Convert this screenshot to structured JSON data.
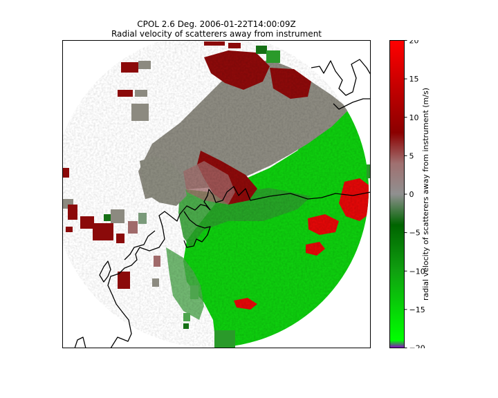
{
  "figure": {
    "title_line1": "CPOL 2.6 Deg. 2006-01-22T14:00:09Z",
    "title_line2": "Radial velocity of scatterers away from instrument"
  },
  "colorbar": {
    "label": "radial velocity of scatterers away from instrument (m/s)",
    "min": -20,
    "max": 20,
    "ticks": [
      "-20",
      "-15",
      "-10",
      "-5",
      "0",
      "5",
      "10",
      "15",
      "20"
    ],
    "stops": [
      {
        "value": -20,
        "color": "#8a00c8"
      },
      {
        "value": -19,
        "color": "#00ff00"
      },
      {
        "value": -10,
        "color": "#10a010"
      },
      {
        "value": -4,
        "color": "#006400"
      },
      {
        "value": 0,
        "color": "#909090"
      },
      {
        "value": 4,
        "color": "#a07070"
      },
      {
        "value": 8,
        "color": "#8b0000"
      },
      {
        "value": 20,
        "color": "#ff0000"
      }
    ]
  },
  "colors": {
    "velocity_gray": "#8a8a80",
    "velocity_dark_red": "#8b0a0a",
    "velocity_green": "#0ed00e",
    "velocity_dark_green": "#157015",
    "velocity_bright_red": "#e00808",
    "coastline": "#000000"
  }
}
